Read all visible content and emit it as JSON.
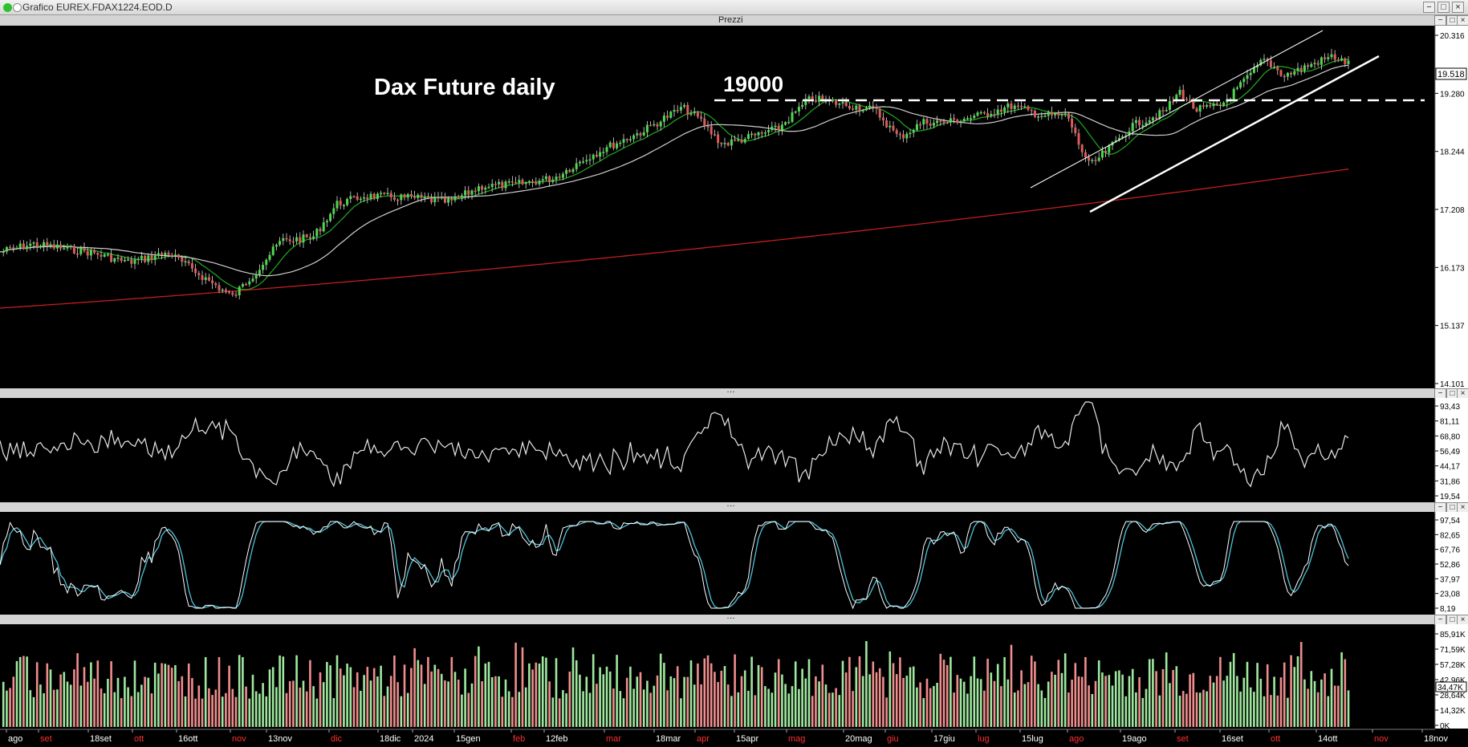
{
  "window": {
    "title": "Grafico EUREX.FDAX1224.EOD.D",
    "controls": {
      "minimize": "−",
      "maximize": "□",
      "close": "×"
    }
  },
  "price_pane": {
    "title": "Prezzi",
    "annotation_title": "Dax Future daily",
    "annotation_level": "19000",
    "y_ticks": [
      "20.316",
      "19.280",
      "18.244",
      "17.208",
      "16.173",
      "15.137",
      "14.101"
    ],
    "last_price_label": "19.518",
    "colors": {
      "up": "#4dd94d",
      "down": "#e05a5a",
      "ma_short": "#22aa22",
      "ma_mid": "#cfcfcf",
      "ma_long": "#c21f1f",
      "trendline": "#ffffff"
    }
  },
  "oscillator_pane": {
    "y_ticks": [
      "93,43",
      "81,11",
      "68,80",
      "56,49",
      "44,17",
      "31,86",
      "19,54"
    ]
  },
  "stochastic_pane": {
    "y_ticks": [
      "97,54",
      "82,65",
      "67,76",
      "52,86",
      "37,97",
      "23,08",
      "8,19"
    ],
    "colors": {
      "k": "#ffffff",
      "d": "#4fc3d9"
    }
  },
  "volume_pane": {
    "y_ticks": [
      "85,91K",
      "71,59K",
      "57,28K",
      "42,96K",
      "28,64K",
      "14,32K",
      "0K"
    ],
    "last_volume_label": "34,47K"
  },
  "x_axis": {
    "labels": [
      {
        "text": "ago",
        "color": "#ffffff"
      },
      {
        "text": "set",
        "color": "#ff3030"
      },
      {
        "text": "18set",
        "color": "#ffffff"
      },
      {
        "text": "ott",
        "color": "#ff3030"
      },
      {
        "text": "16ott",
        "color": "#ffffff"
      },
      {
        "text": "nov",
        "color": "#ff3030"
      },
      {
        "text": "13nov",
        "color": "#ffffff"
      },
      {
        "text": "dic",
        "color": "#ff3030"
      },
      {
        "text": "18dic",
        "color": "#ffffff"
      },
      {
        "text": "2024",
        "color": "#ffffff"
      },
      {
        "text": "15gen",
        "color": "#ffffff"
      },
      {
        "text": "feb",
        "color": "#ff3030"
      },
      {
        "text": "12feb",
        "color": "#ffffff"
      },
      {
        "text": "mar",
        "color": "#ff3030"
      },
      {
        "text": "18mar",
        "color": "#ffffff"
      },
      {
        "text": "apr",
        "color": "#ff3030"
      },
      {
        "text": "15apr",
        "color": "#ffffff"
      },
      {
        "text": "mag",
        "color": "#ff3030"
      },
      {
        "text": "20mag",
        "color": "#ffffff"
      },
      {
        "text": "giu",
        "color": "#ff3030"
      },
      {
        "text": "17giu",
        "color": "#ffffff"
      },
      {
        "text": "lug",
        "color": "#ff3030"
      },
      {
        "text": "15lug",
        "color": "#ffffff"
      },
      {
        "text": "ago",
        "color": "#ff3030"
      },
      {
        "text": "19ago",
        "color": "#ffffff"
      },
      {
        "text": "set",
        "color": "#ff3030"
      },
      {
        "text": "16set",
        "color": "#ffffff"
      },
      {
        "text": "ott",
        "color": "#ff3030"
      },
      {
        "text": "14ott",
        "color": "#ffffff"
      },
      {
        "text": "nov",
        "color": "#ff3030"
      },
      {
        "text": "18nov",
        "color": "#ffffff"
      }
    ]
  }
}
